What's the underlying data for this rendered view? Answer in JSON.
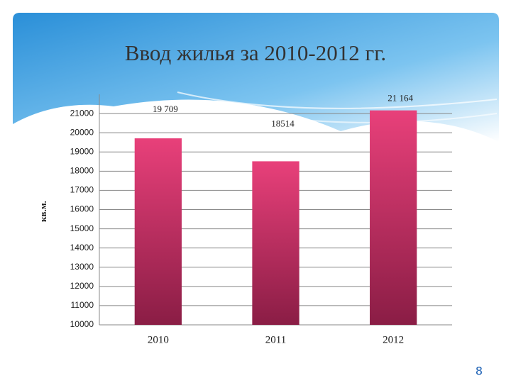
{
  "chart_data": {
    "type": "bar",
    "title": "Ввод жилья за 2010-2012 гг.",
    "y_label": "кв.м.",
    "categories": [
      "2010",
      "2011",
      "2012"
    ],
    "values": [
      19709,
      18514,
      21164
    ],
    "value_labels": [
      "19 709",
      "18514",
      "21 164"
    ],
    "color": "#e8407a",
    "ylim": [
      10000,
      22000
    ],
    "yticks": [
      10000,
      11000,
      12000,
      13000,
      14000,
      15000,
      16000,
      17000,
      18000,
      19000,
      20000,
      21000
    ],
    "grid": true
  },
  "page_number": "8"
}
